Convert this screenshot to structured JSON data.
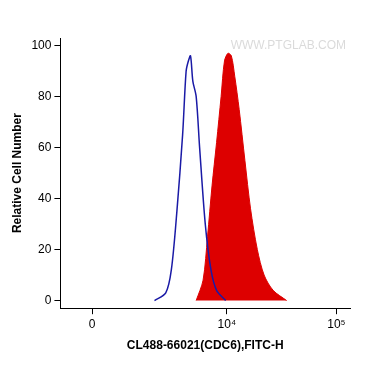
{
  "chart_data": {
    "type": "histogram",
    "x_label": "CL488-66021(CDC6),FITC-H",
    "y_label": "Relative Cell Number",
    "annotations": [
      "WWW.PTGLAB.COM"
    ],
    "log": "x",
    "grid": false,
    "xlim": [
      -850,
      133000
    ],
    "xticks": [
      0,
      {
        "value": 10000,
        "label": "10⁴"
      },
      {
        "value": 100000,
        "label": "10⁵"
      }
    ],
    "ylim": [
      -3,
      103
    ],
    "yticks": [
      0,
      20,
      40,
      60,
      80,
      100
    ],
    "series": [
      {
        "type": "line",
        "color": "#1a1aa6",
        "x": [
          2040,
          2660,
          3020,
          3420,
          3880,
          4190,
          4400,
          4610,
          4850,
          5210,
          5610,
          6330,
          7150,
          8050,
          9760
        ],
        "values": [
          0,
          3,
          12,
          35,
          65,
          90,
          94,
          96,
          86,
          80,
          60,
          30,
          12,
          4,
          0
        ]
      },
      {
        "type": "area",
        "color": "#dd0000",
        "x": [
          5210,
          6040,
          6640,
          7310,
          8050,
          8860,
          9520,
          10240,
          11000,
          11820,
          12980,
          14640,
          16490,
          19020,
          21930,
          26520,
          35200
        ],
        "values": [
          0,
          8,
          25,
          45,
          62,
          80,
          94,
          97,
          96,
          88,
          75,
          55,
          36,
          20,
          10,
          4,
          0
        ]
      }
    ]
  }
}
